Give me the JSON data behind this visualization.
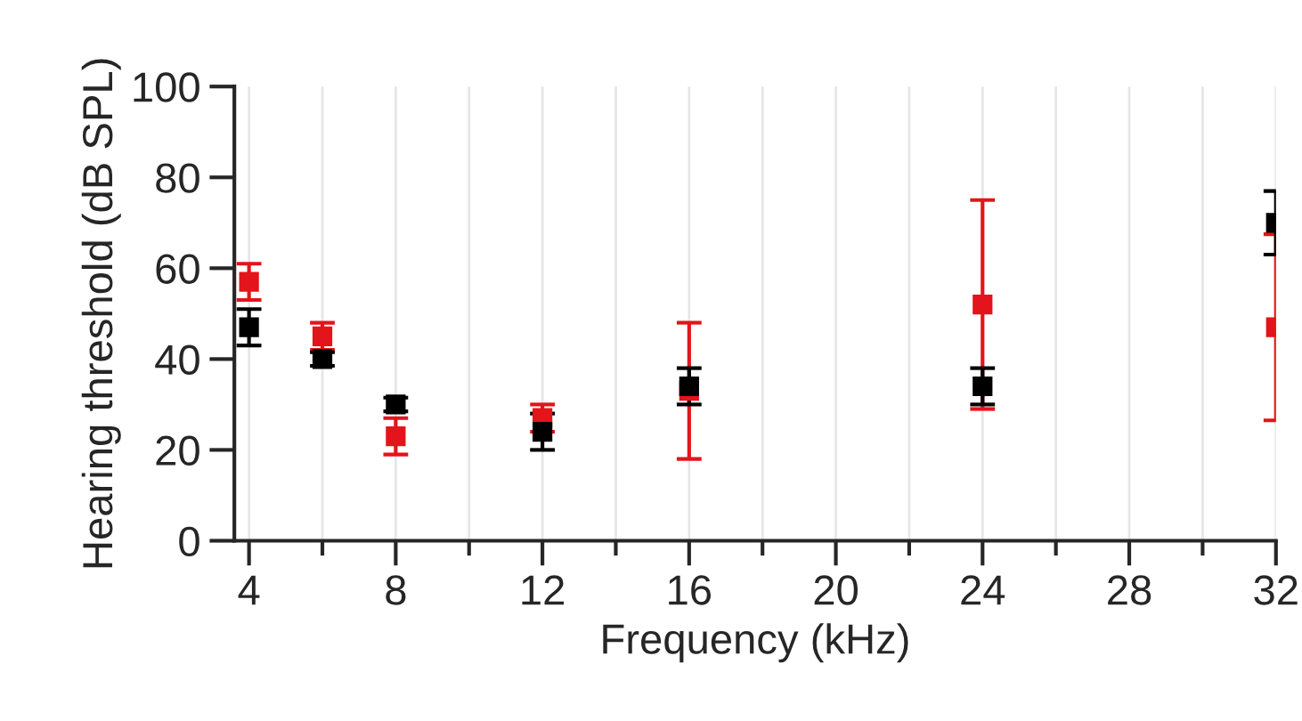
{
  "chart_data": {
    "type": "scatter",
    "xlabel": "Frequency (kHz)",
    "ylabel": "Hearing threshold (dB SPL)",
    "xlim": [
      3.6,
      32
    ],
    "ylim": [
      0,
      100
    ],
    "xticks": [
      4,
      {
        "value": 6,
        "label": null
      },
      8,
      {
        "value": 10,
        "label": null
      },
      12,
      {
        "value": 14,
        "label": null
      },
      16,
      {
        "value": 18,
        "label": null
      },
      20,
      {
        "value": 22,
        "label": null
      },
      24,
      {
        "value": 26,
        "label": null
      },
      28,
      {
        "value": 30,
        "label": null
      },
      32
    ],
    "yticks": [
      0,
      20,
      40,
      60,
      80,
      100
    ],
    "grid": "x",
    "marker": "square",
    "legend": false,
    "series": [
      {
        "color": "#e3141b",
        "x": [
          4,
          6,
          8,
          12,
          16,
          24,
          32
        ],
        "values": [
          57,
          45,
          23,
          27,
          33,
          52,
          47
        ],
        "errors": [
          4,
          3,
          4,
          3,
          15,
          23,
          20.5
        ]
      },
      {
        "color": "#000000",
        "x": [
          4,
          6,
          8,
          12,
          16,
          24,
          32
        ],
        "values": [
          47,
          40,
          30,
          24,
          34,
          34,
          70
        ],
        "errors": [
          4,
          1.5,
          1.5,
          4,
          4,
          4,
          7
        ]
      }
    ]
  }
}
